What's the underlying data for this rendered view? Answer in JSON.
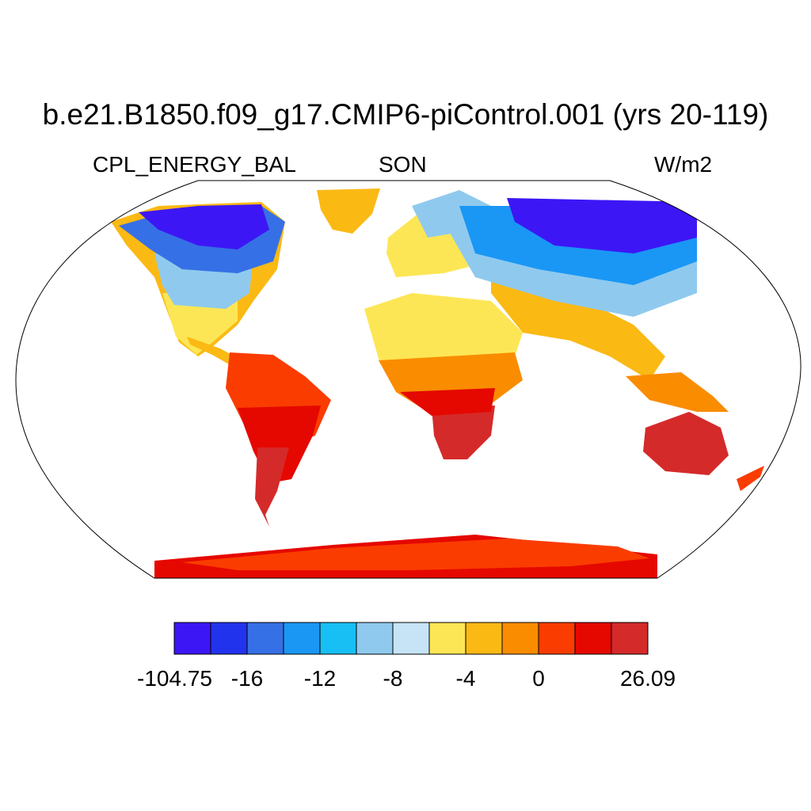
{
  "title": "b.e21.B1850.f09_g17.CMIP6-piControl.001 (yrs 20-119)",
  "subtitle_left": "CPL_ENERGY_BAL",
  "subtitle_center": "SON",
  "subtitle_right": "W/m2",
  "colors": {
    "ocean": "#ffffff",
    "outline": "#000000",
    "palette": [
      "#3d16f5",
      "#2233ee",
      "#3670e6",
      "#1a97f5",
      "#17bff5",
      "#8fcaee",
      "#c6e4f6",
      "#fde655",
      "#fbb914",
      "#fa8c00",
      "#fa3c00",
      "#e50800",
      "#d52a2a"
    ]
  },
  "colorbar": {
    "tick_labels": [
      "-104.75",
      "-16",
      "-12",
      "-8",
      "-4",
      "0",
      "26.09"
    ]
  }
}
